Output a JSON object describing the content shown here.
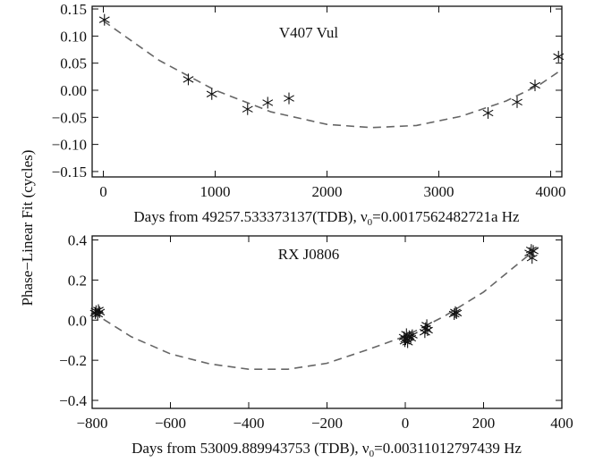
{
  "figure": {
    "shared_ylabel": "Phase−Linear Fit (cycles)"
  },
  "chart_data": [
    {
      "type": "scatter",
      "title": "V407 Vul",
      "xlabel_prefix": "Days from 49257.533373137(TDB), ν",
      "xlabel_sub": "0",
      "xlabel_suffix": "=0.0017562482721a Hz",
      "xlim": [
        -100,
        4100
      ],
      "ylim": [
        -0.16,
        0.155
      ],
      "xticks": [
        0,
        1000,
        2000,
        3000,
        4000
      ],
      "xticklabels": [
        "0",
        "1000",
        "2000",
        "3000",
        "4000"
      ],
      "yticks": [
        -0.15,
        -0.1,
        -0.05,
        0.0,
        0.05,
        0.1,
        0.15
      ],
      "yticklabels": [
        "−0.15",
        "−0.10",
        "−0.05",
        "0.00",
        "0.05",
        "0.10",
        "0.15"
      ],
      "grid": false,
      "series": [
        {
          "marker": "asterisk",
          "points": [
            [
              10,
              0.13
            ],
            [
              760,
              0.02
            ],
            [
              970,
              -0.007
            ],
            [
              1290,
              -0.035
            ],
            [
              1470,
              -0.023
            ],
            [
              1660,
              -0.015
            ],
            [
              3440,
              -0.042
            ],
            [
              3700,
              -0.022
            ],
            [
              3860,
              0.009
            ],
            [
              4070,
              0.062
            ]
          ]
        }
      ],
      "fit": {
        "style": "dashed",
        "points": [
          [
            0,
            0.128
          ],
          [
            500,
            0.055
          ],
          [
            1000,
            0.0
          ],
          [
            1500,
            -0.04
          ],
          [
            2000,
            -0.063
          ],
          [
            2400,
            -0.069
          ],
          [
            2800,
            -0.065
          ],
          [
            3200,
            -0.048
          ],
          [
            3600,
            -0.02
          ],
          [
            3900,
            0.01
          ],
          [
            4100,
            0.038
          ]
        ]
      }
    },
    {
      "type": "scatter",
      "title": "RX J0806",
      "xlabel_prefix": "Days from 53009.889943753 (TDB), ν",
      "xlabel_sub": "0",
      "xlabel_suffix": "=0.00311012797439 Hz",
      "xlim": [
        -800,
        400
      ],
      "ylim": [
        -0.44,
        0.42
      ],
      "xticks": [
        -800,
        -600,
        -400,
        -200,
        0,
        200,
        400
      ],
      "xticklabels": [
        "−800",
        "−600",
        "−400",
        "−200",
        "0",
        "200",
        "400"
      ],
      "yticks": [
        -0.4,
        -0.2,
        0.0,
        0.2,
        0.4
      ],
      "yticklabels": [
        "−0.4",
        "−0.2",
        "0.0",
        "0.2",
        "0.4"
      ],
      "grid": false,
      "series": [
        {
          "marker": "asterisk",
          "points": [
            [
              -792,
              0.035
            ],
            [
              -790,
              0.045
            ],
            [
              -786,
              0.03
            ],
            [
              -784,
              0.05
            ],
            [
              -781,
              0.04
            ],
            [
              -3,
              -0.085
            ],
            [
              -1,
              -0.105
            ],
            [
              1,
              -0.095
            ],
            [
              3,
              -0.07
            ],
            [
              6,
              -0.11
            ],
            [
              10,
              -0.08
            ],
            [
              14,
              -0.09
            ],
            [
              18,
              -0.075
            ],
            [
              50,
              -0.06
            ],
            [
              52,
              -0.04
            ],
            [
              55,
              -0.025
            ],
            [
              57,
              -0.05
            ],
            [
              125,
              0.03
            ],
            [
              128,
              0.04
            ],
            [
              131,
              0.035
            ],
            [
              318,
              0.335
            ],
            [
              322,
              0.35
            ],
            [
              324,
              0.31
            ],
            [
              327,
              0.345
            ]
          ]
        }
      ],
      "fit": {
        "style": "dashed",
        "points": [
          [
            -800,
            0.04
          ],
          [
            -700,
            -0.083
          ],
          [
            -600,
            -0.168
          ],
          [
            -500,
            -0.218
          ],
          [
            -400,
            -0.245
          ],
          [
            -300,
            -0.245
          ],
          [
            -200,
            -0.215
          ],
          [
            -100,
            -0.15
          ],
          [
            0,
            -0.08
          ],
          [
            100,
            0.02
          ],
          [
            200,
            0.14
          ],
          [
            300,
            0.3
          ],
          [
            350,
            0.38
          ]
        ]
      }
    }
  ]
}
